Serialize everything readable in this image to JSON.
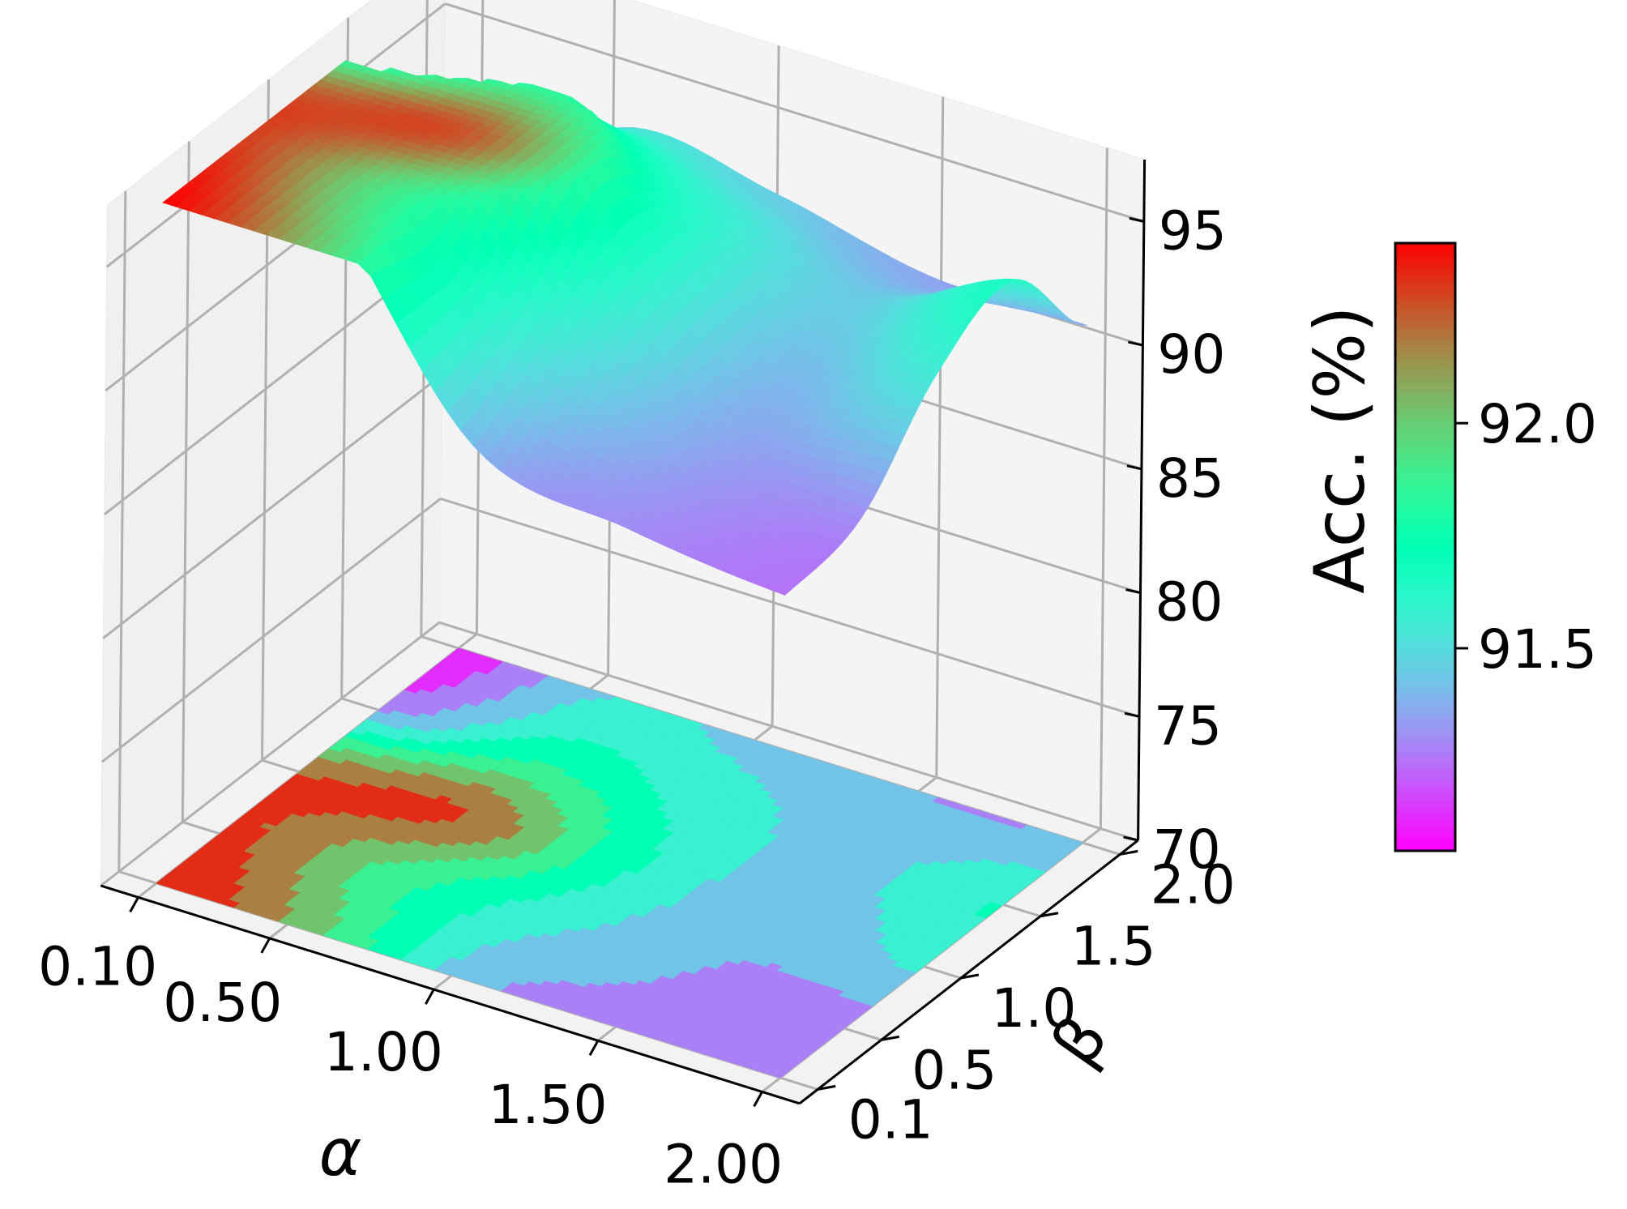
{
  "chart_data": {
    "type": "surface3d",
    "title": "",
    "xlabel": "α",
    "ylabel": "β",
    "zlabel": "",
    "x_ticks": [
      "0.10",
      "0.50",
      "1.00",
      "1.50",
      "2.00"
    ],
    "y_ticks": [
      "0.1",
      "0.5",
      "1.0",
      "1.5",
      "2.0"
    ],
    "z_ticks": [
      "70",
      "75",
      "80",
      "85",
      "90",
      "95"
    ],
    "z_range": [
      70,
      97.5
    ],
    "alpha_values": [
      0.1,
      0.5,
      1.0,
      1.5,
      2.0
    ],
    "beta_values": [
      0.1,
      0.5,
      1.0,
      1.5,
      2.0
    ],
    "accuracy_grid": [
      [
        92.4,
        92.0,
        91.4,
        91.3,
        91.25
      ],
      [
        92.3,
        91.9,
        91.55,
        91.35,
        91.3
      ],
      [
        92.2,
        92.25,
        91.7,
        91.4,
        91.55
      ],
      [
        91.3,
        91.75,
        91.6,
        91.45,
        91.65
      ],
      [
        91.1,
        91.5,
        91.45,
        91.35,
        91.35
      ]
    ],
    "contour_offset_z": 70,
    "colormap": "rainbow",
    "grid": true,
    "colorbar": {
      "label": "Acc. (%)",
      "ticks": [
        "91.5",
        "92.0"
      ],
      "tick_values": [
        91.5,
        92.0
      ],
      "range": [
        91.05,
        92.4
      ],
      "placement": "right"
    }
  }
}
